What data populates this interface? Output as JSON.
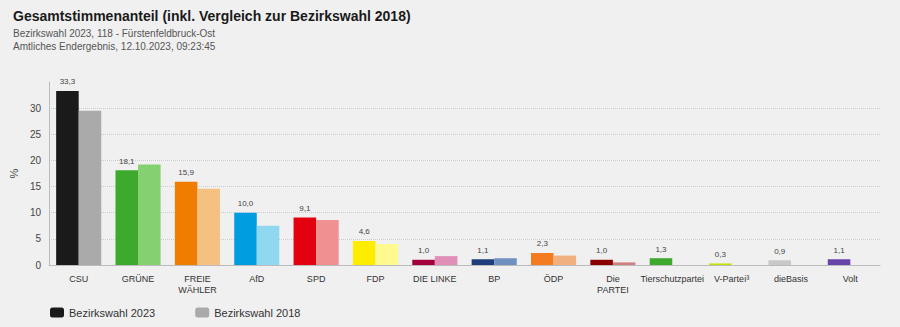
{
  "chart_data": {
    "type": "bar",
    "title": "Gesamtstimmenanteil (inkl. Vergleich zur Bezirkswahl 2018)",
    "subtitle": [
      "Bezirkswahl 2023, 118 - Fürstenfeldbruck-Ost",
      "Amtliches Endergebnis, 12.10.2023, 09:23:45"
    ],
    "ylabel": "%",
    "categories": [
      "CSU",
      "GRÜNE",
      "FREIE\nWÄHLER",
      "AfD",
      "SPD",
      "FDP",
      "DIE LINKE",
      "BP",
      "ÖDP",
      "Die\nPARTEI",
      "Tierschutzpartei",
      "V-Partei³",
      "dieBasis",
      "Volt"
    ],
    "series": [
      {
        "name": "Bezirkswahl 2023",
        "color": "#1a1a1a",
        "colors": [
          "#1a1a1a",
          "#3daa2e",
          "#f07d00",
          "#009ee0",
          "#e3000f",
          "#ffed00",
          "#a3003d",
          "#1e3f7c",
          "#f47b20",
          "#8b0000",
          "#3daa2e",
          "#c8e000",
          "#c8c8c8",
          "#6644aa"
        ],
        "values": [
          33.3,
          18.1,
          15.9,
          10.0,
          9.1,
          4.6,
          1.0,
          1.1,
          2.3,
          1.0,
          1.3,
          0.3,
          0.9,
          1.1
        ],
        "data_labels": true,
        "value_labels": [
          "33,3",
          "18,1",
          "15,9",
          "10,0",
          "9,1",
          "4,6",
          "1,0",
          "1,1",
          "2,3",
          "1,0",
          "1,3",
          "0,3",
          "0,9",
          "1,1"
        ]
      },
      {
        "name": "Bezirkswahl 2018",
        "color": "#aaaaaa",
        "colors": [
          "#aaaaaa",
          "#85d070",
          "#f5c080",
          "#90d8f0",
          "#f09090",
          "#fffa90",
          "#e090b8",
          "#7090c0",
          "#f0b080",
          "#d08080",
          null,
          null,
          null,
          null
        ],
        "values": [
          29.5,
          19.2,
          14.6,
          7.5,
          8.6,
          4.0,
          1.7,
          1.3,
          1.8,
          0.5,
          null,
          null,
          null,
          null
        ]
      }
    ],
    "ylim": [
      0,
      35
    ],
    "yticks": [
      0,
      5,
      10,
      15,
      20,
      25,
      30
    ],
    "grid": true,
    "legend": "bottom"
  }
}
